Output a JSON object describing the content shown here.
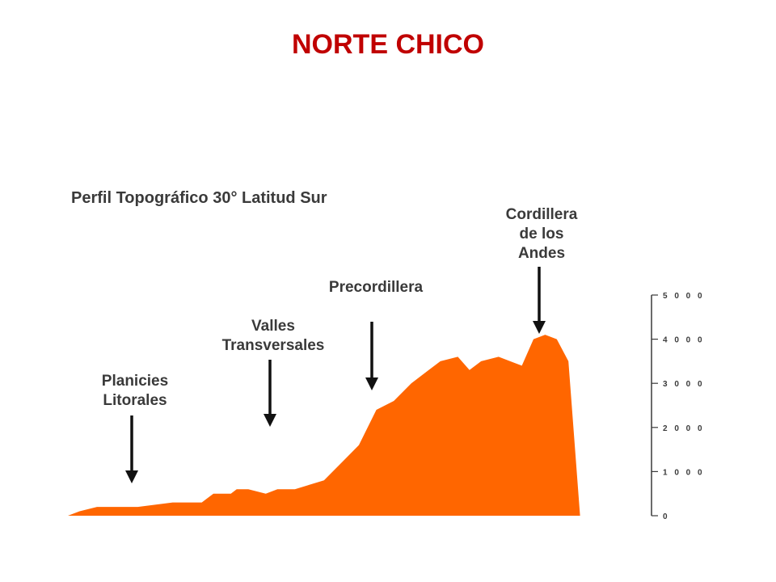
{
  "slide_title": "NORTE CHICO",
  "colors": {
    "title": "#c00000",
    "area": "#ff6600",
    "text": "#3a3a3a"
  },
  "chart_data": {
    "type": "area",
    "title": "Perfil Topográfico 30° Latitud Sur",
    "xlabel": "",
    "ylabel": "",
    "ylim": [
      0,
      5000
    ],
    "yticks": [
      {
        "value": 0,
        "label": "0"
      },
      {
        "value": 1000,
        "label": "1 0 0 0"
      },
      {
        "value": 2000,
        "label": "2 0 0 0"
      },
      {
        "value": 3000,
        "label": "3 0 0 0"
      },
      {
        "value": 4000,
        "label": "4 0 0 0"
      },
      {
        "value": 5000,
        "label": "5 0 0 0"
      }
    ],
    "x": [
      0,
      2,
      5,
      10,
      12,
      18,
      20,
      23,
      25,
      28,
      29,
      31,
      34,
      36,
      39,
      44,
      47,
      50,
      53,
      56,
      59,
      62,
      64,
      67,
      69,
      71,
      74,
      78,
      80,
      82,
      84,
      86,
      88,
      90,
      92,
      94,
      96,
      98,
      100
    ],
    "y": [
      0,
      100,
      200,
      200,
      200,
      300,
      300,
      300,
      500,
      500,
      600,
      600,
      500,
      600,
      600,
      800,
      1200,
      1600,
      2400,
      2600,
      3000,
      3300,
      3500,
      3600,
      3300,
      3500,
      3600,
      3400,
      4000,
      4100,
      4000,
      3500,
      0,
      0,
      0,
      0,
      0,
      0,
      0
    ],
    "annotations": [
      {
        "id": "planicies",
        "lines": [
          "Planicies",
          "Litorales"
        ],
        "x": 20
      },
      {
        "id": "valles",
        "lines": [
          "Valles",
          "Transversales"
        ],
        "x": 63
      },
      {
        "id": "precordillera",
        "lines": [
          "Precordillera"
        ],
        "x": 94
      },
      {
        "id": "cordillera",
        "lines": [
          "Cordillera",
          "de los",
          "Andes"
        ],
        "x": 146
      }
    ]
  }
}
